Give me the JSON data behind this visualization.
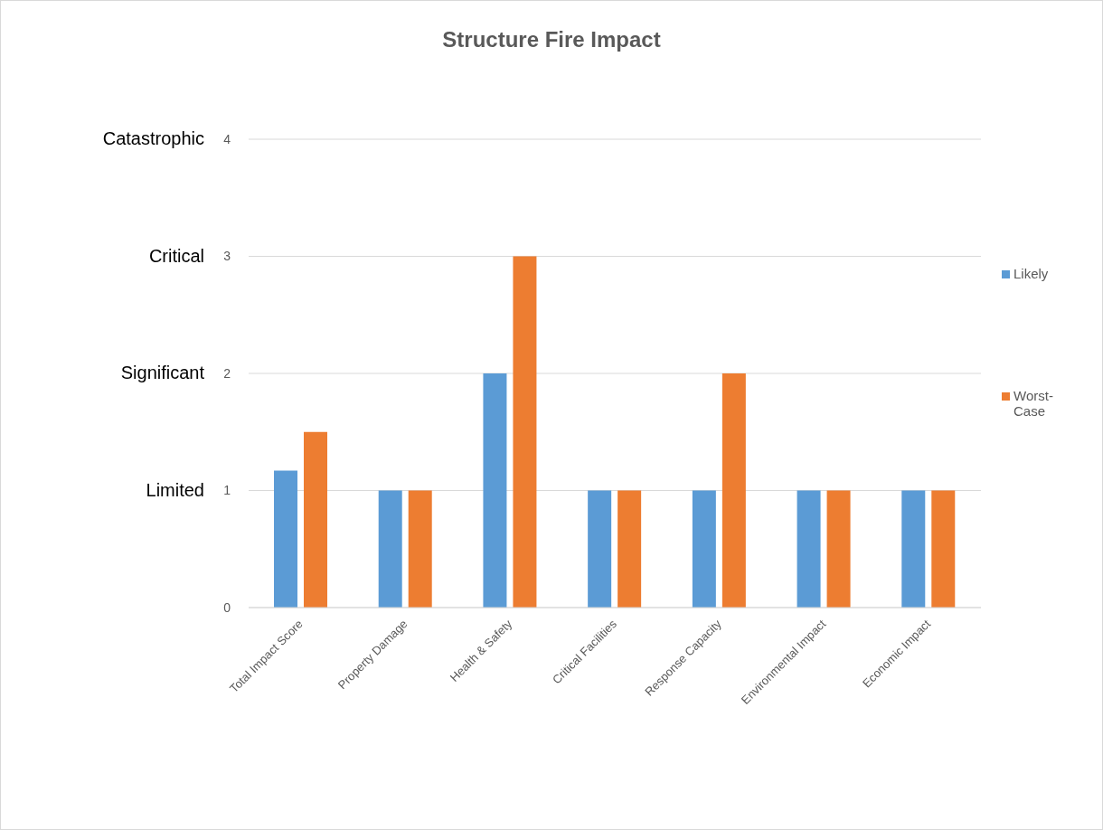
{
  "chart_data": {
    "type": "bar",
    "title": "Structure Fire Impact",
    "categories": [
      "Total Impact Score",
      "Property Damage",
      "Health & Safety",
      "Critical Facilities",
      "Response Capacity",
      "Environmental Impact",
      "Economic Impact"
    ],
    "series": [
      {
        "name": "Likely",
        "color": "#5b9bd5",
        "values": [
          1.17,
          1,
          2,
          1,
          1,
          1,
          1
        ]
      },
      {
        "name": "Worst-Case",
        "color": "#ed7d31",
        "values": [
          1.5,
          1,
          3,
          1,
          2,
          1,
          1
        ]
      }
    ],
    "ylim": [
      0,
      4
    ],
    "yticks": [
      0,
      1,
      2,
      3,
      4
    ],
    "grid": "y",
    "legend": "right",
    "annotations": [
      "Catastrophic",
      "Critical",
      "Significant",
      "Limited"
    ]
  }
}
